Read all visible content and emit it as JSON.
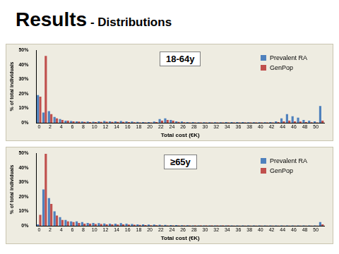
{
  "title": {
    "main": "Results",
    "sub": "- Distributions"
  },
  "chart_data": [
    {
      "type": "bar",
      "title": "18-64y",
      "x_label": "Total cost (€K)",
      "y_label": "% of total individuals",
      "categories": [
        0,
        null,
        2,
        null,
        4,
        null,
        6,
        null,
        8,
        null,
        10,
        null,
        12,
        null,
        14,
        null,
        16,
        null,
        18,
        null,
        20,
        null,
        22,
        null,
        24,
        null,
        26,
        null,
        28,
        null,
        30,
        null,
        32,
        null,
        34,
        null,
        36,
        null,
        38,
        null,
        40,
        null,
        42,
        null,
        44,
        null,
        46,
        null,
        48,
        null,
        50,
        null
      ],
      "series": [
        {
          "name": "Prevalent RA",
          "color": "#4f81bd",
          "values": [
            19,
            7,
            8,
            4,
            2.5,
            1.5,
            1.2,
            1,
            0.8,
            0.8,
            0.7,
            1,
            1.2,
            1,
            1,
            1.2,
            1,
            0.8,
            0.6,
            0.5,
            0.5,
            0.8,
            2.5,
            3,
            2,
            1,
            0.8,
            0.5,
            0.5,
            0.4,
            0.4,
            0.4,
            0.4,
            0.4,
            0.5,
            0.5,
            0.5,
            0.5,
            0.4,
            0.4,
            0.4,
            0.4,
            0.5,
            1,
            3,
            6,
            4.5,
            3.5,
            2,
            1.5,
            1,
            11.5
          ]
        },
        {
          "name": "GenPop",
          "color": "#c0504d",
          "values": [
            18,
            46,
            6,
            3,
            2,
            1.5,
            1,
            0.8,
            0.6,
            0.5,
            0.5,
            0.6,
            0.7,
            0.6,
            0.6,
            0.6,
            0.5,
            0.4,
            0.3,
            0.3,
            0.3,
            0.5,
            1.5,
            2,
            1.5,
            0.6,
            0.4,
            0.3,
            0.2,
            0.2,
            0.2,
            0.2,
            0.2,
            0.2,
            0.2,
            0.2,
            0.2,
            0.2,
            0.2,
            0.2,
            0.2,
            0.2,
            0.2,
            0.5,
            1,
            1.5,
            1,
            0.8,
            0.5,
            0.4,
            0.3,
            1.5
          ]
        }
      ],
      "ylim": [
        0,
        50
      ],
      "yticks": [
        {
          "value": 0,
          "label": "0%"
        },
        {
          "value": 10,
          "label": "10%"
        },
        {
          "value": 20,
          "label": "20%"
        },
        {
          "value": 30,
          "label": "30%"
        },
        {
          "value": 40,
          "label": "40%"
        },
        {
          "value": 50,
          "label": "50%"
        }
      ],
      "grid": false,
      "legend": "top-right"
    },
    {
      "type": "bar",
      "title": "≥65y",
      "x_label": "Total cost (€K)",
      "y_label": "% of total individuals",
      "categories": [
        0,
        null,
        2,
        null,
        4,
        null,
        6,
        null,
        8,
        null,
        10,
        null,
        12,
        null,
        14,
        null,
        16,
        null,
        18,
        null,
        20,
        null,
        22,
        null,
        24,
        null,
        26,
        null,
        28,
        null,
        30,
        null,
        32,
        null,
        34,
        null,
        36,
        null,
        38,
        null,
        40,
        null,
        42,
        null,
        44,
        null,
        46,
        null,
        48,
        null,
        50,
        null
      ],
      "series": [
        {
          "name": "Prevalent RA",
          "color": "#4f81bd",
          "values": [
            1,
            25,
            19,
            10,
            6,
            4,
            3,
            3,
            2.5,
            2,
            2,
            1.8,
            1.6,
            1.5,
            1.5,
            1.8,
            1.5,
            1.2,
            1,
            1,
            0.8,
            0.8,
            0.7,
            0.6,
            0.5,
            0.5,
            0.4,
            0.4,
            0.3,
            0.3,
            0.3,
            0.3,
            0.3,
            0.3,
            0.3,
            0.3,
            0.3,
            0.2,
            0.2,
            0.2,
            0.2,
            0.2,
            0.2,
            0.2,
            0.2,
            0.2,
            0.2,
            0.2,
            0.2,
            0.2,
            0.2,
            2.5
          ]
        },
        {
          "name": "GenPop",
          "color": "#c0504d",
          "values": [
            7.5,
            49.5,
            15,
            7,
            4,
            3,
            2.5,
            2,
            1.5,
            1.5,
            1.2,
            1.2,
            1,
            1,
            0.9,
            1,
            0.8,
            0.7,
            0.6,
            0.5,
            0.4,
            0.4,
            0.3,
            0.3,
            0.3,
            0.2,
            0.2,
            0.2,
            0.2,
            0.2,
            0.2,
            0.2,
            0.2,
            0.2,
            0.2,
            0.1,
            0.1,
            0.1,
            0.1,
            0.1,
            0.1,
            0.1,
            0.1,
            0.1,
            0.1,
            0.1,
            0.1,
            0.1,
            0.1,
            0.1,
            0.1,
            1
          ]
        }
      ],
      "ylim": [
        0,
        50
      ],
      "yticks": [
        {
          "value": 0,
          "label": "0%"
        },
        {
          "value": 10,
          "label": "10%"
        },
        {
          "value": 20,
          "label": "20%"
        },
        {
          "value": 30,
          "label": "30%"
        },
        {
          "value": 40,
          "label": "40%"
        },
        {
          "value": 50,
          "label": "50%"
        }
      ],
      "grid": false,
      "legend": "top-right"
    }
  ]
}
